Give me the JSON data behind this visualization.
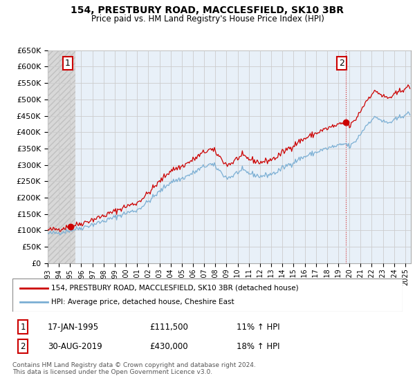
{
  "title": "154, PRESTBURY ROAD, MACCLESFIELD, SK10 3BR",
  "subtitle": "Price paid vs. HM Land Registry's House Price Index (HPI)",
  "red_label": "154, PRESTBURY ROAD, MACCLESFIELD, SK10 3BR (detached house)",
  "blue_label": "HPI: Average price, detached house, Cheshire East",
  "point1_label": "1",
  "point1_date": "17-JAN-1995",
  "point1_price": "£111,500",
  "point1_pct": "11% ↑ HPI",
  "point2_label": "2",
  "point2_date": "30-AUG-2019",
  "point2_price": "£430,000",
  "point2_pct": "18% ↑ HPI",
  "footer": "Contains HM Land Registry data © Crown copyright and database right 2024.\nThis data is licensed under the Open Government Licence v3.0.",
  "ylim": [
    0,
    650000
  ],
  "yticks": [
    0,
    50000,
    100000,
    150000,
    200000,
    250000,
    300000,
    350000,
    400000,
    450000,
    500000,
    550000,
    600000,
    650000
  ],
  "ytick_labels": [
    "£0",
    "£50K",
    "£100K",
    "£150K",
    "£200K",
    "£250K",
    "£300K",
    "£350K",
    "£400K",
    "£450K",
    "£500K",
    "£550K",
    "£600K",
    "£650K"
  ],
  "xlim_start": 1993.0,
  "xlim_end": 2025.5,
  "xtick_years": [
    1993,
    1994,
    1995,
    1996,
    1997,
    1998,
    1999,
    2000,
    2001,
    2002,
    2003,
    2004,
    2005,
    2006,
    2007,
    2008,
    2009,
    2010,
    2011,
    2012,
    2013,
    2014,
    2015,
    2016,
    2017,
    2018,
    2019,
    2020,
    2021,
    2022,
    2023,
    2024,
    2025
  ],
  "point1_x": 1995.04,
  "point1_y": 111500,
  "point2_x": 2019.66,
  "point2_y": 430000,
  "red_color": "#cc0000",
  "blue_color": "#7bafd4",
  "bg_color": "#ffffff",
  "grid_color": "#cccccc",
  "hatch_color": "#e0e0e0",
  "chart_bg": "#e8f0f8"
}
